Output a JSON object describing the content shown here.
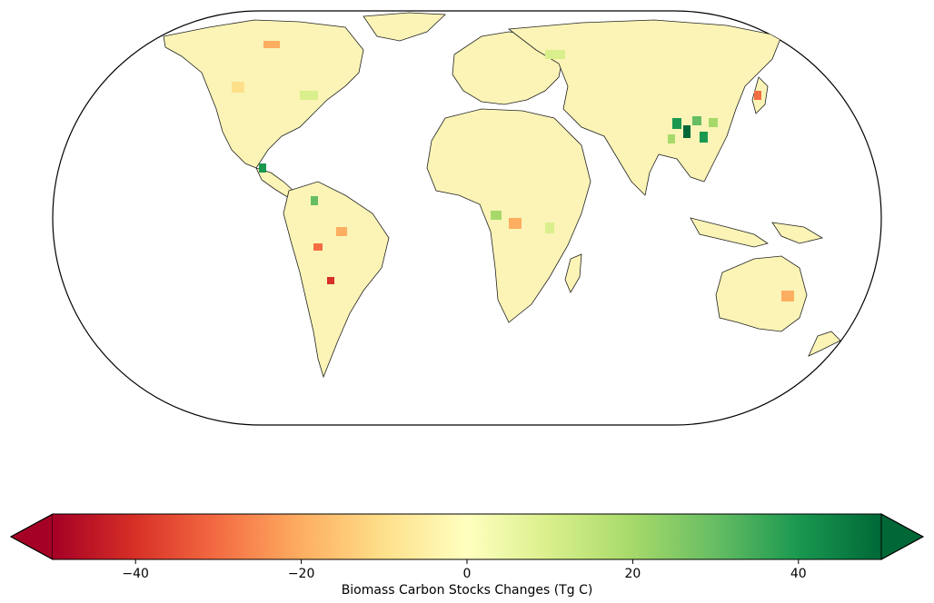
{
  "map": {
    "projection": "Eckert IV (global, Robinson-like)",
    "land_base_color": "#fbf4b6",
    "border_color": "#222222",
    "regions": [
      {
        "name": "north-america",
        "tone": "mixed"
      },
      {
        "name": "south-america",
        "tone": "mostly-losses"
      },
      {
        "name": "africa",
        "tone": "mixed"
      },
      {
        "name": "europe",
        "tone": "slight-gains"
      },
      {
        "name": "asia",
        "tone": "gains"
      },
      {
        "name": "australia",
        "tone": "slight-losses"
      }
    ]
  },
  "colorbar": {
    "label": "Biomass Carbon Stocks Changes (Tg C)",
    "min": -50,
    "max": 50,
    "extend": "both",
    "colormap": "RdYlGn",
    "ticks": [
      {
        "value": -40,
        "label": "−40"
      },
      {
        "value": -20,
        "label": "−20"
      },
      {
        "value": 0,
        "label": "0"
      },
      {
        "value": 20,
        "label": "20"
      },
      {
        "value": 40,
        "label": "40"
      }
    ],
    "stops": [
      "#a50026",
      "#d73027",
      "#f46d43",
      "#fdae61",
      "#fee08b",
      "#ffffbf",
      "#d9ef8b",
      "#a6d96a",
      "#66bd63",
      "#1a9850",
      "#006837"
    ]
  }
}
